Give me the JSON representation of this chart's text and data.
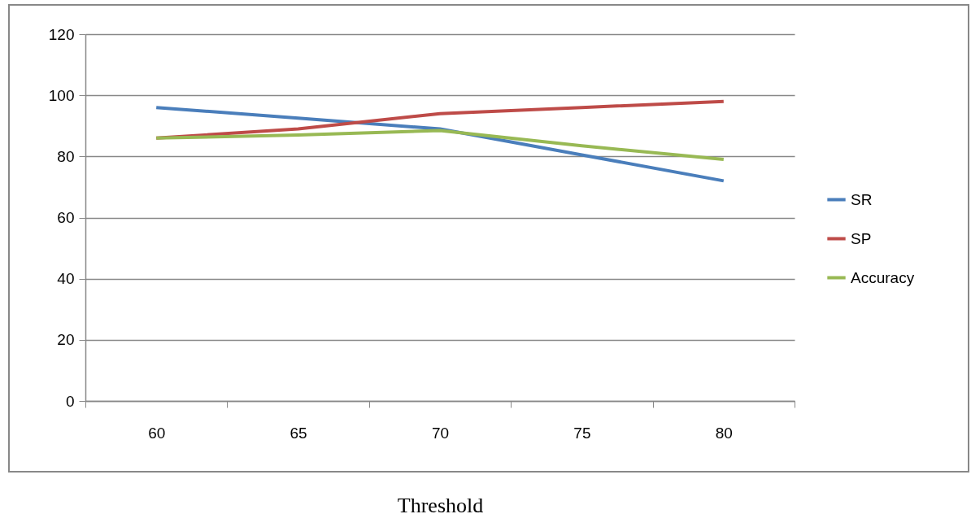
{
  "chart_data": {
    "type": "line",
    "xlabel": "Threshold",
    "categories": [
      "60",
      "65",
      "70",
      "75",
      "80"
    ],
    "series": [
      {
        "name": "SR",
        "color": "#4a7ebb",
        "values": [
          96,
          92.5,
          89,
          80.5,
          72
        ]
      },
      {
        "name": "SP",
        "color": "#be4b48",
        "values": [
          86,
          89,
          94,
          96,
          98
        ]
      },
      {
        "name": "Accuracy",
        "color": "#98b954",
        "values": [
          86,
          87,
          88.5,
          83.5,
          79
        ]
      }
    ],
    "ylim": [
      0,
      120
    ],
    "yticks": [
      0,
      20,
      40,
      60,
      80,
      100,
      120
    ],
    "grid": "y",
    "legend": "right",
    "marker": "none"
  }
}
